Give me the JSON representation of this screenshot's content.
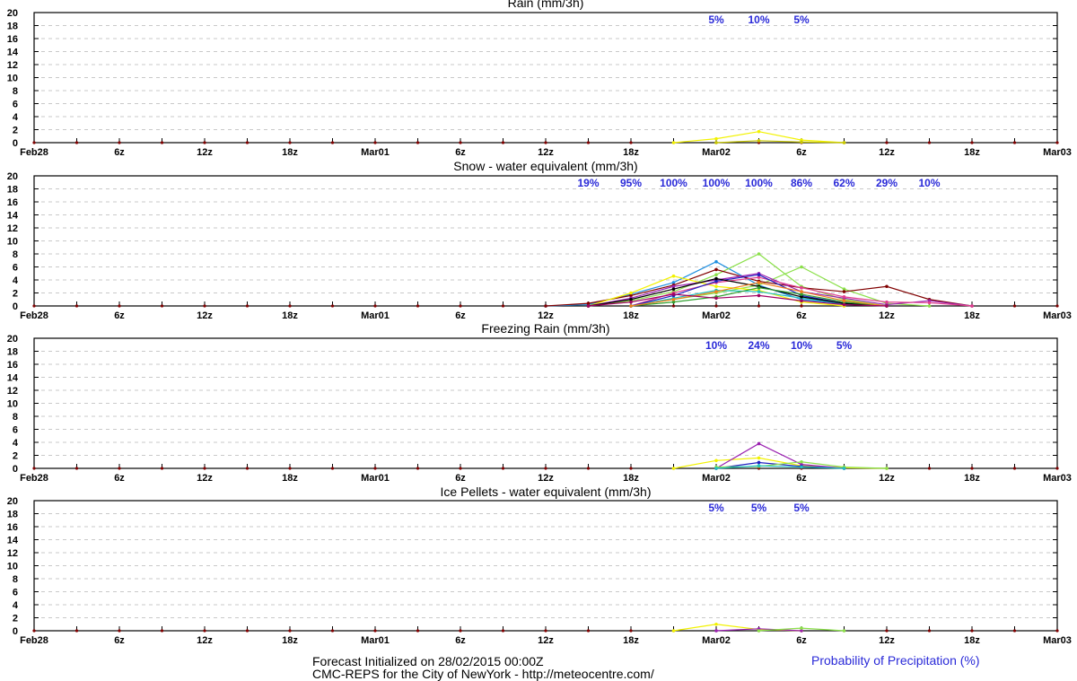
{
  "chart_data": [
    {
      "type": "line",
      "title": "Rain (mm/3h)",
      "ylim": [
        0,
        20
      ],
      "yticks": [
        0,
        2,
        4,
        6,
        8,
        10,
        12,
        14,
        16,
        18,
        20
      ],
      "x_tick_labels": [
        "Feb28",
        "6z",
        "12z",
        "18z",
        "Mar01",
        "6z",
        "12z",
        "18z",
        "Mar02",
        "6z",
        "12z",
        "18z",
        "Mar03"
      ],
      "grid": true,
      "probability_labels": [
        {
          "x_hour": 48,
          "text": "5%"
        },
        {
          "x_hour": 51,
          "text": "10%"
        },
        {
          "x_hour": 54,
          "text": "5%"
        }
      ],
      "series": [
        {
          "color": "#f2f200",
          "points": [
            [
              45,
              0
            ],
            [
              48,
              0.6
            ],
            [
              51,
              1.7
            ],
            [
              54,
              0.4
            ],
            [
              57,
              0
            ]
          ]
        },
        {
          "color": "#c8c800",
          "points": [
            [
              48,
              0
            ],
            [
              51,
              0.3
            ],
            [
              54,
              0.1
            ],
            [
              57,
              0
            ]
          ]
        }
      ]
    },
    {
      "type": "line",
      "title": "Snow - water equivalent (mm/3h)",
      "ylim": [
        0,
        20
      ],
      "yticks": [
        0,
        2,
        4,
        6,
        8,
        10,
        12,
        14,
        16,
        18,
        20
      ],
      "x_tick_labels": [
        "Feb28",
        "6z",
        "12z",
        "18z",
        "Mar01",
        "6z",
        "12z",
        "18z",
        "Mar02",
        "6z",
        "12z",
        "18z",
        "Mar03"
      ],
      "grid": true,
      "probability_labels": [
        {
          "x_hour": 39,
          "text": "19%"
        },
        {
          "x_hour": 42,
          "text": "95%"
        },
        {
          "x_hour": 45,
          "text": "100%"
        },
        {
          "x_hour": 48,
          "text": "100%"
        },
        {
          "x_hour": 51,
          "text": "100%"
        },
        {
          "x_hour": 54,
          "text": "86%"
        },
        {
          "x_hour": 57,
          "text": "62%"
        },
        {
          "x_hour": 60,
          "text": "29%"
        },
        {
          "x_hour": 63,
          "text": "10%"
        }
      ],
      "series": [
        {
          "color": "#1f8fe0",
          "points": [
            [
              36,
              0
            ],
            [
              39,
              0.2
            ],
            [
              42,
              1.8
            ],
            [
              45,
              3.6
            ],
            [
              48,
              6.8
            ],
            [
              51,
              3.2
            ],
            [
              54,
              1.0
            ],
            [
              57,
              0.3
            ],
            [
              60,
              0
            ]
          ]
        },
        {
          "color": "#8be04a",
          "points": [
            [
              39,
              0
            ],
            [
              42,
              0.8
            ],
            [
              45,
              2.2
            ],
            [
              48,
              4.8
            ],
            [
              51,
              8.0
            ],
            [
              54,
              3.0
            ],
            [
              57,
              1.0
            ],
            [
              60,
              0
            ]
          ]
        },
        {
          "color": "#8be04a",
          "points": [
            [
              42,
              0
            ],
            [
              45,
              1.0
            ],
            [
              48,
              2.0
            ],
            [
              51,
              3.2
            ],
            [
              54,
              6.0
            ],
            [
              57,
              2.6
            ],
            [
              60,
              0.4
            ],
            [
              63,
              0
            ]
          ]
        },
        {
          "color": "#800000",
          "points": [
            [
              36,
              0
            ],
            [
              39,
              0.4
            ],
            [
              42,
              1.6
            ],
            [
              45,
              3.2
            ],
            [
              48,
              5.6
            ],
            [
              51,
              3.8
            ],
            [
              54,
              2.8
            ],
            [
              57,
              2.2
            ],
            [
              60,
              3.0
            ],
            [
              63,
              1.0
            ],
            [
              66,
              0
            ]
          ]
        },
        {
          "color": "#f2f200",
          "points": [
            [
              39,
              0
            ],
            [
              42,
              2.0
            ],
            [
              45,
              4.6
            ],
            [
              48,
              3.0
            ],
            [
              51,
              2.4
            ],
            [
              54,
              0.6
            ],
            [
              57,
              0
            ]
          ]
        },
        {
          "color": "#9a20b0",
          "points": [
            [
              39,
              0
            ],
            [
              42,
              1.2
            ],
            [
              45,
              3.0
            ],
            [
              48,
              4.0
            ],
            [
              51,
              5.0
            ],
            [
              54,
              2.2
            ],
            [
              57,
              1.2
            ],
            [
              60,
              0.2
            ],
            [
              63,
              0.8
            ],
            [
              66,
              0
            ]
          ]
        },
        {
          "color": "#e0408f",
          "points": [
            [
              42,
              0
            ],
            [
              45,
              2.0
            ],
            [
              48,
              3.6
            ],
            [
              51,
              4.4
            ],
            [
              54,
              2.8
            ],
            [
              57,
              1.4
            ],
            [
              60,
              0.6
            ],
            [
              63,
              0.5
            ],
            [
              66,
              0
            ]
          ]
        },
        {
          "color": "#20c0c0",
          "points": [
            [
              42,
              0
            ],
            [
              45,
              1.2
            ],
            [
              48,
              2.4
            ],
            [
              51,
              2.2
            ],
            [
              54,
              1.2
            ],
            [
              57,
              0.4
            ],
            [
              60,
              0
            ]
          ]
        },
        {
          "color": "#2020c0",
          "points": [
            [
              42,
              0
            ],
            [
              45,
              1.6
            ],
            [
              48,
              3.8
            ],
            [
              51,
              4.8
            ],
            [
              54,
              1.6
            ],
            [
              57,
              0.4
            ],
            [
              60,
              0
            ]
          ]
        },
        {
          "color": "#000000",
          "points": [
            [
              39,
              0
            ],
            [
              42,
              1.0
            ],
            [
              45,
              2.6
            ],
            [
              48,
              4.2
            ],
            [
              51,
              3.0
            ],
            [
              54,
              1.4
            ],
            [
              57,
              0.4
            ],
            [
              60,
              0
            ]
          ]
        },
        {
          "color": "#30a030",
          "points": [
            [
              42,
              0
            ],
            [
              45,
              0.6
            ],
            [
              48,
              1.4
            ],
            [
              51,
              2.8
            ],
            [
              54,
              1.8
            ],
            [
              57,
              0.6
            ],
            [
              60,
              0
            ]
          ]
        },
        {
          "color": "#f08020",
          "points": [
            [
              42,
              0
            ],
            [
              45,
              1.0
            ],
            [
              48,
              2.2
            ],
            [
              51,
              3.6
            ],
            [
              54,
              2.2
            ],
            [
              57,
              0.8
            ],
            [
              60,
              0
            ]
          ]
        },
        {
          "color": "#a00060",
          "points": [
            [
              39,
              0
            ],
            [
              42,
              0.6
            ],
            [
              45,
              1.8
            ],
            [
              48,
              1.2
            ],
            [
              51,
              1.6
            ],
            [
              54,
              0.8
            ],
            [
              57,
              0.2
            ],
            [
              60,
              0
            ]
          ]
        }
      ]
    },
    {
      "type": "line",
      "title": "Freezing Rain (mm/3h)",
      "ylim": [
        0,
        20
      ],
      "yticks": [
        0,
        2,
        4,
        6,
        8,
        10,
        12,
        14,
        16,
        18,
        20
      ],
      "x_tick_labels": [
        "Feb28",
        "6z",
        "12z",
        "18z",
        "Mar01",
        "6z",
        "12z",
        "18z",
        "Mar02",
        "6z",
        "12z",
        "18z",
        "Mar03"
      ],
      "grid": true,
      "probability_labels": [
        {
          "x_hour": 48,
          "text": "10%"
        },
        {
          "x_hour": 51,
          "text": "24%"
        },
        {
          "x_hour": 54,
          "text": "10%"
        },
        {
          "x_hour": 57,
          "text": "5%"
        }
      ],
      "series": [
        {
          "color": "#f2f200",
          "points": [
            [
              45,
              0
            ],
            [
              48,
              1.2
            ],
            [
              51,
              1.6
            ],
            [
              54,
              0.4
            ],
            [
              57,
              0.1
            ],
            [
              60,
              0
            ]
          ]
        },
        {
          "color": "#9a20b0",
          "points": [
            [
              48,
              0
            ],
            [
              51,
              3.8
            ],
            [
              54,
              0.6
            ],
            [
              57,
              0
            ]
          ]
        },
        {
          "color": "#2020c0",
          "points": [
            [
              48,
              0
            ],
            [
              51,
              0.9
            ],
            [
              54,
              0.3
            ],
            [
              57,
              0
            ]
          ]
        },
        {
          "color": "#8be04a",
          "points": [
            [
              48,
              0.2
            ],
            [
              51,
              0.3
            ],
            [
              54,
              1.0
            ],
            [
              57,
              0.2
            ],
            [
              60,
              0
            ]
          ]
        },
        {
          "color": "#20c0c0",
          "points": [
            [
              48,
              0
            ],
            [
              51,
              0.4
            ],
            [
              54,
              0.2
            ],
            [
              57,
              0
            ]
          ]
        }
      ]
    },
    {
      "type": "line",
      "title": "Ice Pellets - water equivalent (mm/3h)",
      "ylim": [
        0,
        20
      ],
      "yticks": [
        0,
        2,
        4,
        6,
        8,
        10,
        12,
        14,
        16,
        18,
        20
      ],
      "x_tick_labels": [
        "Feb28",
        "6z",
        "12z",
        "18z",
        "Mar01",
        "6z",
        "12z",
        "18z",
        "Mar02",
        "6z",
        "12z",
        "18z",
        "Mar03"
      ],
      "grid": true,
      "probability_labels": [
        {
          "x_hour": 48,
          "text": "5%"
        },
        {
          "x_hour": 51,
          "text": "5%"
        },
        {
          "x_hour": 54,
          "text": "5%"
        }
      ],
      "series": [
        {
          "color": "#f2f200",
          "points": [
            [
              45,
              0
            ],
            [
              48,
              1.0
            ],
            [
              51,
              0.2
            ],
            [
              54,
              0
            ]
          ]
        },
        {
          "color": "#9a20b0",
          "points": [
            [
              48,
              0
            ],
            [
              51,
              0.3
            ],
            [
              54,
              0
            ]
          ]
        },
        {
          "color": "#8be04a",
          "points": [
            [
              51,
              0
            ],
            [
              54,
              0.4
            ],
            [
              57,
              0
            ]
          ]
        }
      ]
    }
  ],
  "footer": {
    "line1": "Forecast Initialized on 28/02/2015 00:00Z",
    "line2": "CMC-REPS for the City of NewYork - http://meteocentre.com/",
    "legend": "Probability of Precipitation (%)"
  }
}
